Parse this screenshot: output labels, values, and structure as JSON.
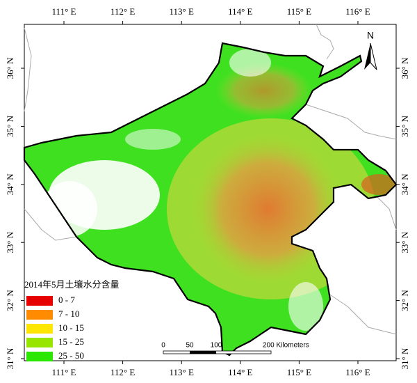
{
  "longitude_labels": [
    "111° E",
    "112° E",
    "113° E",
    "114° E",
    "115° E",
    "116° E"
  ],
  "latitude_labels": [
    "36° N",
    "35° N",
    "34° N",
    "33° N",
    "32° N",
    "31° N"
  ],
  "legend": {
    "title": "2014年5月土壤水分含量",
    "items": [
      {
        "label": "0 - 7",
        "color": "#e60000"
      },
      {
        "label": "7 - 10",
        "color": "#ff8c00"
      },
      {
        "label": "10 - 15",
        "color": "#ffe600"
      },
      {
        "label": "15 - 25",
        "color": "#98e600"
      },
      {
        "label": "25 - 50",
        "color": "#2ae600"
      }
    ]
  },
  "scale_bar": {
    "labels": [
      "0",
      "50",
      "100",
      "200 Kilometers"
    ]
  },
  "north_arrow": "N"
}
